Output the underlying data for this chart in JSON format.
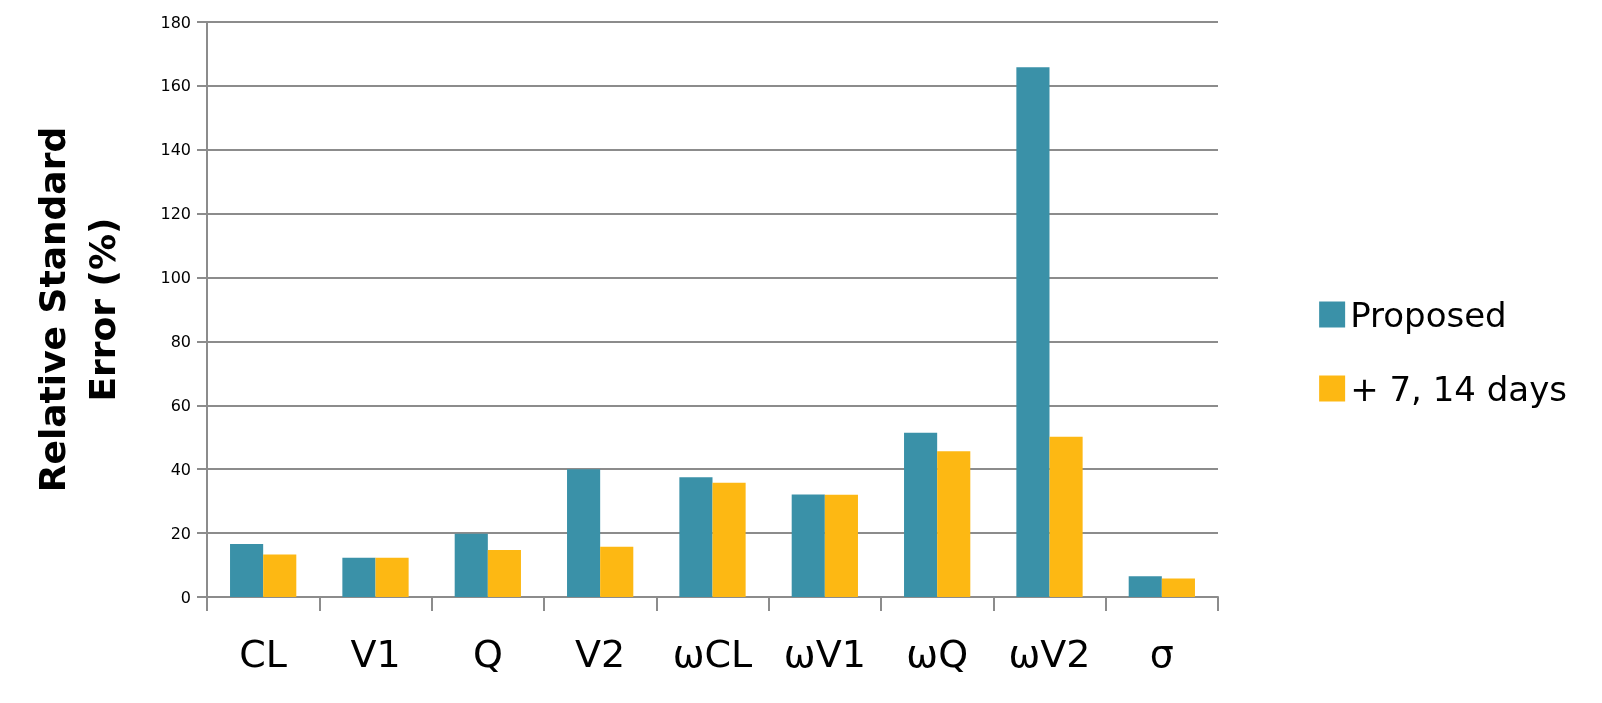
{
  "chart_data": {
    "type": "bar",
    "ylabel": "Relative Standard Error (%)",
    "categories": [
      "CL",
      "V1",
      "Q",
      "V2",
      "ωCL",
      "ωV1",
      "ωQ",
      "ωV2",
      "σ"
    ],
    "series": [
      {
        "name": "Proposed",
        "color": "#3a91a8",
        "values": [
          16.6,
          12.3,
          19.8,
          40,
          37.5,
          32.1,
          51.4,
          165.8,
          6.5
        ]
      },
      {
        "name": "+ 7, 14 days",
        "color": "#fdb813",
        "values": [
          13.3,
          12.3,
          14.7,
          15.7,
          35.8,
          32,
          45.6,
          50.2,
          5.8
        ]
      }
    ],
    "ylim": [
      0,
      180
    ],
    "yticks": [
      0,
      20,
      40,
      60,
      80,
      100,
      120,
      140,
      160,
      180
    ],
    "grid": "y",
    "legend": "right"
  }
}
